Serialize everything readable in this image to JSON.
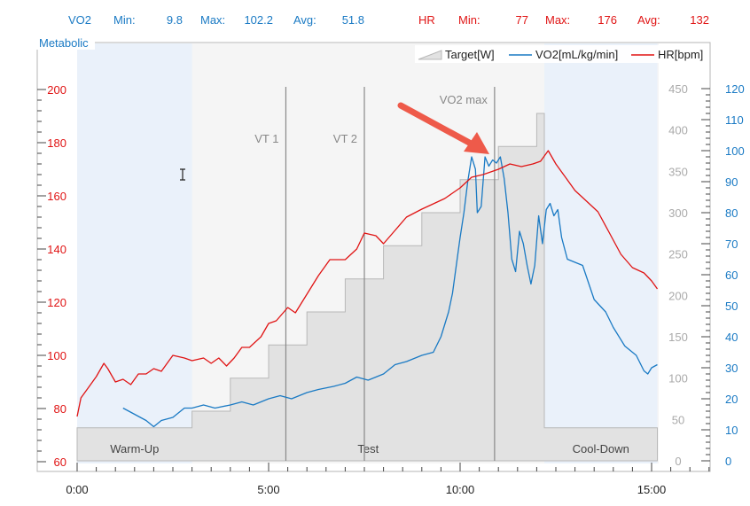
{
  "stats": {
    "vo2": {
      "label": "VO2",
      "min_label": "Min:",
      "min": "9.8",
      "max_label": "Max:",
      "max": "102.2",
      "avg_label": "Avg:",
      "avg": "51.8"
    },
    "hr": {
      "label": "HR",
      "min_label": "Min:",
      "min": "77",
      "max_label": "Max:",
      "max": "176",
      "avg_label": "Avg:",
      "avg": "132"
    }
  },
  "colors": {
    "vo2": "#1a7ac4",
    "hr": "#e01414",
    "target_fill": "#e2e2e2",
    "target_stroke": "#b8b8b8",
    "phase_bg": "#eaf1fa",
    "test_bg": "#f5f5f5",
    "marker": "#888888",
    "arrow": "#ee5a4a"
  },
  "chart_data": {
    "type": "line",
    "panel_title": "Metabolic",
    "legend": [
      {
        "name": "Target[W]",
        "style": "area"
      },
      {
        "name": "VO2[mL/kg/min]",
        "style": "line",
        "color": "#1a7ac4"
      },
      {
        "name": "HR[bpm]",
        "style": "line",
        "color": "#e01414"
      }
    ],
    "legend_position": "top-right",
    "x_ticks": [
      "0:00",
      "5:00",
      "10:00",
      "15:00"
    ],
    "x_range_min": [
      0,
      16.5
    ],
    "hr_axis": {
      "range": [
        60,
        200
      ],
      "ticks": [
        60,
        80,
        100,
        120,
        140,
        160,
        180,
        200
      ]
    },
    "target_axis": {
      "range": [
        0,
        450
      ],
      "ticks": [
        0,
        50,
        100,
        150,
        200,
        250,
        300,
        350,
        400,
        450
      ]
    },
    "vo2_axis": {
      "range": [
        0,
        120
      ],
      "ticks": [
        0,
        10,
        20,
        30,
        40,
        50,
        60,
        70,
        80,
        90,
        100,
        110,
        120
      ]
    },
    "phases": [
      {
        "name": "Warm-Up",
        "start": 0,
        "end": 3.0
      },
      {
        "name": "Test",
        "start": 3.0,
        "end": 12.2
      },
      {
        "name": "Cool-Down",
        "start": 12.2,
        "end": 15.15
      }
    ],
    "markers": [
      {
        "label": "VT 1",
        "x": 5.45
      },
      {
        "label": "VT 2",
        "x": 7.5
      },
      {
        "label": "VO2 max",
        "x": 10.9
      }
    ],
    "target": [
      [
        0,
        40
      ],
      [
        3.0,
        40
      ],
      [
        3.0,
        60
      ],
      [
        4.0,
        60
      ],
      [
        4.0,
        100
      ],
      [
        5.0,
        100
      ],
      [
        5.0,
        140
      ],
      [
        6.0,
        140
      ],
      [
        6.0,
        180
      ],
      [
        7.0,
        180
      ],
      [
        7.0,
        220
      ],
      [
        8.0,
        220
      ],
      [
        8.0,
        260
      ],
      [
        9.0,
        260
      ],
      [
        9.0,
        300
      ],
      [
        10.0,
        300
      ],
      [
        10.0,
        340
      ],
      [
        11.0,
        340
      ],
      [
        11.0,
        380
      ],
      [
        12.0,
        380
      ],
      [
        12.0,
        420
      ],
      [
        12.2,
        420
      ],
      [
        12.2,
        40
      ],
      [
        15.15,
        40
      ]
    ],
    "hr": [
      [
        0,
        77
      ],
      [
        0.1,
        84
      ],
      [
        0.3,
        88
      ],
      [
        0.5,
        92
      ],
      [
        0.7,
        97
      ],
      [
        0.8,
        95
      ],
      [
        1.0,
        90
      ],
      [
        1.2,
        91
      ],
      [
        1.4,
        89
      ],
      [
        1.6,
        93
      ],
      [
        1.8,
        93
      ],
      [
        2.0,
        95
      ],
      [
        2.2,
        94
      ],
      [
        2.5,
        100
      ],
      [
        2.8,
        99
      ],
      [
        3.0,
        98
      ],
      [
        3.3,
        99
      ],
      [
        3.5,
        97
      ],
      [
        3.7,
        99
      ],
      [
        3.9,
        96
      ],
      [
        4.1,
        99
      ],
      [
        4.3,
        103
      ],
      [
        4.5,
        103
      ],
      [
        4.8,
        107
      ],
      [
        5.0,
        112
      ],
      [
        5.2,
        113
      ],
      [
        5.5,
        118
      ],
      [
        5.7,
        116
      ],
      [
        6.0,
        123
      ],
      [
        6.3,
        130
      ],
      [
        6.6,
        136
      ],
      [
        7.0,
        136
      ],
      [
        7.3,
        140
      ],
      [
        7.5,
        146
      ],
      [
        7.8,
        145
      ],
      [
        8.0,
        142
      ],
      [
        8.3,
        147
      ],
      [
        8.6,
        152
      ],
      [
        9.0,
        155
      ],
      [
        9.3,
        157
      ],
      [
        9.6,
        159
      ],
      [
        10.0,
        163
      ],
      [
        10.3,
        167
      ],
      [
        10.6,
        168
      ],
      [
        11.0,
        170
      ],
      [
        11.3,
        172
      ],
      [
        11.6,
        171
      ],
      [
        11.9,
        172
      ],
      [
        12.1,
        173
      ],
      [
        12.3,
        177
      ],
      [
        12.5,
        172
      ],
      [
        12.8,
        166
      ],
      [
        13.0,
        162
      ],
      [
        13.3,
        158
      ],
      [
        13.6,
        154
      ],
      [
        13.9,
        146
      ],
      [
        14.2,
        138
      ],
      [
        14.5,
        133
      ],
      [
        14.8,
        131
      ],
      [
        15.0,
        128
      ],
      [
        15.15,
        125
      ]
    ],
    "vo2": [
      [
        1.2,
        17
      ],
      [
        1.5,
        15
      ],
      [
        1.8,
        13
      ],
      [
        2.0,
        11
      ],
      [
        2.2,
        13
      ],
      [
        2.5,
        14
      ],
      [
        2.8,
        17
      ],
      [
        3.0,
        17
      ],
      [
        3.3,
        18
      ],
      [
        3.6,
        17
      ],
      [
        4.0,
        18
      ],
      [
        4.3,
        19
      ],
      [
        4.6,
        18
      ],
      [
        5.0,
        20
      ],
      [
        5.3,
        21
      ],
      [
        5.6,
        20
      ],
      [
        6.0,
        22
      ],
      [
        6.3,
        23
      ],
      [
        6.7,
        24
      ],
      [
        7.0,
        25
      ],
      [
        7.3,
        27
      ],
      [
        7.6,
        26
      ],
      [
        8.0,
        28
      ],
      [
        8.3,
        31
      ],
      [
        8.6,
        32
      ],
      [
        9.0,
        34
      ],
      [
        9.3,
        35
      ],
      [
        9.5,
        40
      ],
      [
        9.7,
        48
      ],
      [
        9.8,
        54
      ],
      [
        9.9,
        63
      ],
      [
        10.0,
        72
      ],
      [
        10.1,
        80
      ],
      [
        10.2,
        90
      ],
      [
        10.3,
        98
      ],
      [
        10.4,
        94
      ],
      [
        10.45,
        80
      ],
      [
        10.55,
        82
      ],
      [
        10.65,
        98
      ],
      [
        10.75,
        95
      ],
      [
        10.85,
        97
      ],
      [
        10.95,
        96
      ],
      [
        11.05,
        98
      ],
      [
        11.15,
        91
      ],
      [
        11.25,
        80
      ],
      [
        11.35,
        65
      ],
      [
        11.45,
        61
      ],
      [
        11.55,
        74
      ],
      [
        11.65,
        70
      ],
      [
        11.75,
        63
      ],
      [
        11.85,
        57
      ],
      [
        11.95,
        63
      ],
      [
        12.05,
        79
      ],
      [
        12.15,
        70
      ],
      [
        12.25,
        81
      ],
      [
        12.35,
        83
      ],
      [
        12.45,
        79
      ],
      [
        12.55,
        81
      ],
      [
        12.65,
        72
      ],
      [
        12.8,
        65
      ],
      [
        13.0,
        64
      ],
      [
        13.2,
        63
      ],
      [
        13.5,
        52
      ],
      [
        13.8,
        48
      ],
      [
        14.0,
        43
      ],
      [
        14.3,
        37
      ],
      [
        14.6,
        34
      ],
      [
        14.8,
        29
      ],
      [
        14.9,
        28
      ],
      [
        15.0,
        30
      ],
      [
        15.15,
        31
      ]
    ]
  }
}
